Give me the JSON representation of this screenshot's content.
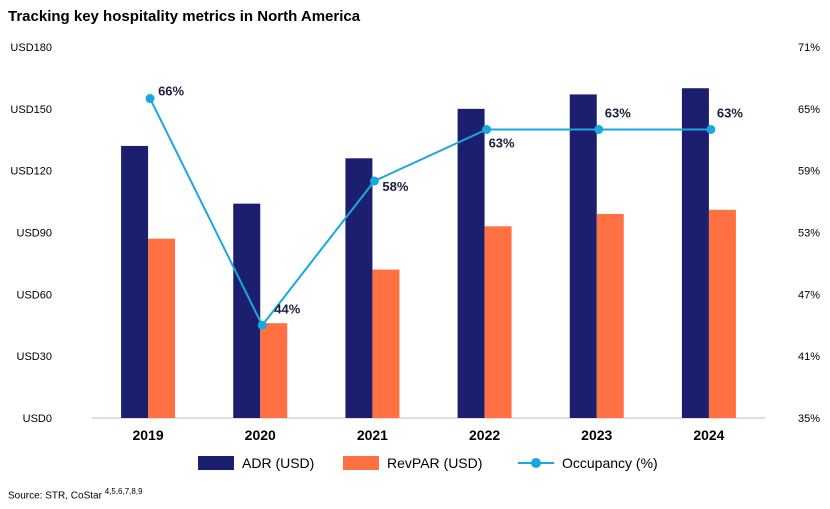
{
  "title": "Tracking key hospitality metrics in North America",
  "source": {
    "text": "Source: STR, CoStar",
    "refs": "4,5,6,7,8,9"
  },
  "legend": {
    "adr": "ADR (USD)",
    "revpar": "RevPAR (USD)",
    "occupancy": "Occupancy (%)"
  },
  "colors": {
    "adr": "#1b1f6e",
    "revpar": "#ff7043",
    "occupancy": "#1aa7e0",
    "axis": "#bdbdbd"
  },
  "chart_data": {
    "type": "bar",
    "categories": [
      "2019",
      "2020",
      "2021",
      "2022",
      "2023",
      "2024"
    ],
    "series": [
      {
        "name": "ADR (USD)",
        "axis": "left",
        "kind": "bar",
        "values": [
          132,
          104,
          126,
          150,
          157,
          160
        ]
      },
      {
        "name": "RevPAR (USD)",
        "axis": "left",
        "kind": "bar",
        "values": [
          87,
          46,
          72,
          93,
          99,
          101
        ]
      },
      {
        "name": "Occupancy (%)",
        "axis": "right",
        "kind": "line",
        "values": [
          66,
          44,
          58,
          63,
          63,
          63
        ],
        "data_labels": [
          "66%",
          "44%",
          "58%",
          "63%",
          "63%",
          "63%"
        ]
      }
    ],
    "y_left": {
      "range": [
        0,
        180
      ],
      "ticks": [
        "USD0",
        "USD30",
        "USD60",
        "USD90",
        "USD120",
        "USD150",
        "USD180"
      ]
    },
    "y_right": {
      "range": [
        35,
        71
      ],
      "ticks": [
        "35%",
        "41%",
        "47%",
        "53%",
        "59%",
        "65%",
        "71%"
      ]
    },
    "grid": false,
    "legend_position": "bottom"
  }
}
